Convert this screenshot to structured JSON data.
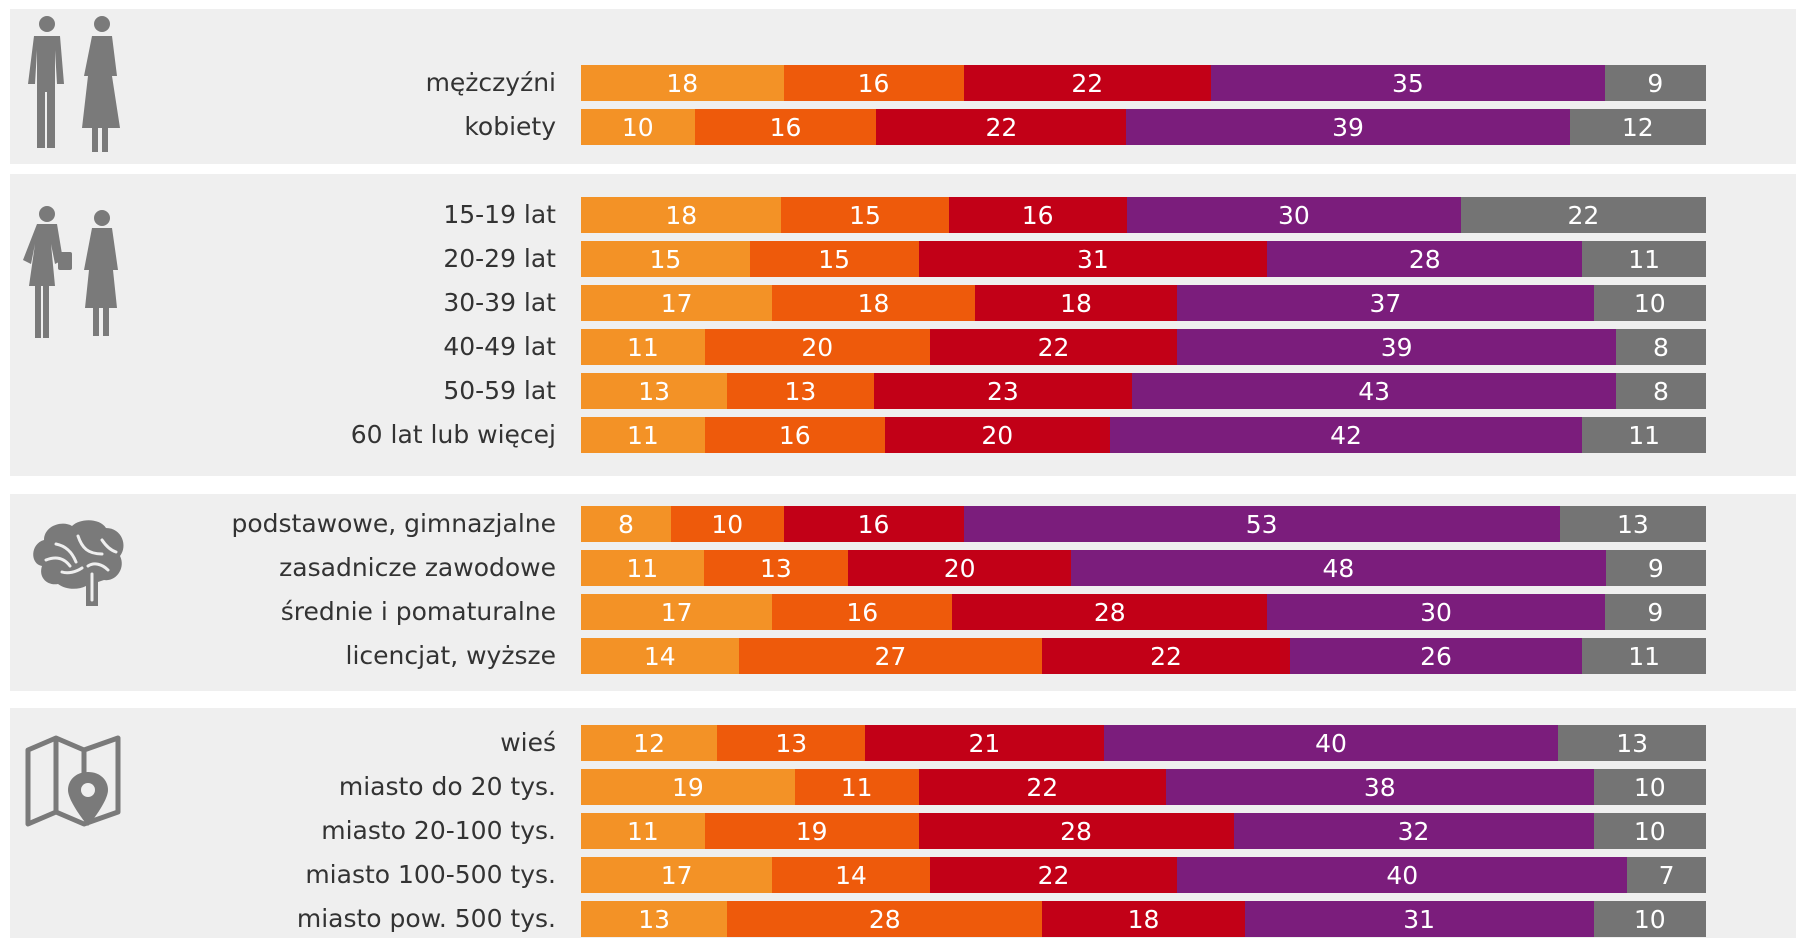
{
  "chart_data": {
    "type": "bar",
    "orientation": "horizontal",
    "stacked": true,
    "normalized": true,
    "series_colors": [
      "#f39226",
      "#ee5a0b",
      "#c20017",
      "#7b1d7c",
      "#747474"
    ],
    "groups": [
      {
        "icon": "man-woman-silhouette-icon",
        "rows": [
          {
            "label": "mężczyźni",
            "values": [
              18,
              16,
              22,
              35,
              9
            ]
          },
          {
            "label": "kobiety",
            "values": [
              10,
              16,
              22,
              39,
              12
            ]
          }
        ]
      },
      {
        "icon": "age-silhouette-icon",
        "rows": [
          {
            "label": "15-19 lat",
            "values": [
              18,
              15,
              16,
              30,
              22
            ]
          },
          {
            "label": "20-29 lat",
            "values": [
              15,
              15,
              31,
              28,
              11
            ]
          },
          {
            "label": "30-39 lat",
            "values": [
              17,
              18,
              18,
              37,
              10
            ]
          },
          {
            "label": "40-49 lat",
            "values": [
              11,
              20,
              22,
              39,
              8
            ]
          },
          {
            "label": "50-59 lat",
            "values": [
              13,
              13,
              23,
              43,
              8
            ]
          },
          {
            "label": "60 lat lub więcej",
            "values": [
              11,
              16,
              20,
              42,
              11
            ]
          }
        ]
      },
      {
        "icon": "brain-icon",
        "rows": [
          {
            "label": "podstawowe, gimnazjalne",
            "values": [
              8,
              10,
              16,
              53,
              13
            ]
          },
          {
            "label": "zasadnicze zawodowe",
            "values": [
              11,
              13,
              20,
              48,
              9
            ]
          },
          {
            "label": "średnie i pomaturalne",
            "values": [
              17,
              16,
              28,
              30,
              9
            ]
          },
          {
            "label": "licencjat, wyższe",
            "values": [
              14,
              27,
              22,
              26,
              11
            ]
          }
        ]
      },
      {
        "icon": "map-pin-icon",
        "rows": [
          {
            "label": "wieś",
            "values": [
              12,
              13,
              21,
              40,
              13
            ]
          },
          {
            "label": "miasto do 20 tys.",
            "values": [
              19,
              11,
              22,
              38,
              10
            ]
          },
          {
            "label": "miasto 20-100 tys.",
            "values": [
              11,
              19,
              28,
              32,
              10
            ]
          },
          {
            "label": "miasto 100-500 tys.",
            "values": [
              17,
              14,
              22,
              40,
              7
            ]
          },
          {
            "label": "miasto pow. 500 tys.",
            "values": [
              13,
              28,
              18,
              31,
              10
            ]
          }
        ]
      }
    ]
  }
}
